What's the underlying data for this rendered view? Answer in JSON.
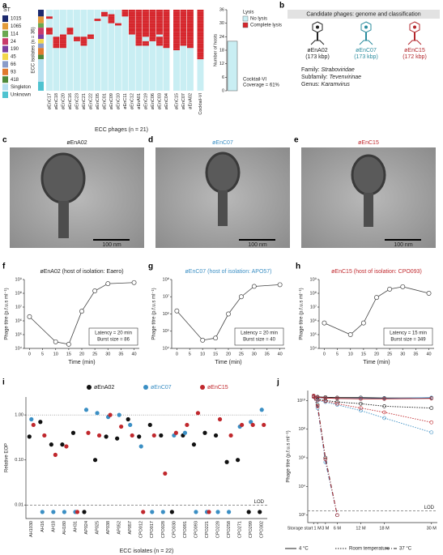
{
  "panel_labels": [
    "a",
    "b",
    "c",
    "d",
    "e",
    "f",
    "g",
    "h",
    "i",
    "j"
  ],
  "panel_b": {
    "header": "Candidate phages: genome and classification",
    "phages": [
      {
        "name": "øEnA02",
        "size": "(173 kbp)",
        "color": "#222222"
      },
      {
        "name": "øEnC07",
        "size": "(173 kbp)",
        "color": "#2b8c9e"
      },
      {
        "name": "øEnC15",
        "size": "(172 kbp)",
        "color": "#b3262b"
      }
    ],
    "classification": [
      {
        "rank": "Family:",
        "name": "Straboviridae"
      },
      {
        "rank": "Subfamily:",
        "name": "Tevenvirinae"
      },
      {
        "rank": "Genus:",
        "name": "Karamvirus"
      }
    ]
  },
  "micrographs": [
    {
      "title": "øEnA02",
      "color": "#222222",
      "scale": "100 nm"
    },
    {
      "title": "øEnC07",
      "color": "#3b8fc4",
      "scale": "100 nm"
    },
    {
      "title": "øEnC15",
      "color": "#c0282d",
      "scale": "100 nm"
    }
  ],
  "chart_data": [
    {
      "type": "heatmap",
      "ylabel": "ECC isolates (n = 36)",
      "xlabel": "ECC phages (n = 21)",
      "st_title": "ST",
      "st": [
        {
          "name": "1015",
          "color": "#1c2a6e",
          "count": 3
        },
        {
          "name": "1065",
          "color": "#e39b3a",
          "count": 3
        },
        {
          "name": "114",
          "color": "#6aa84f",
          "count": 2
        },
        {
          "name": "24",
          "color": "#c93b6b",
          "count": 3
        },
        {
          "name": "190",
          "color": "#7b3fa0",
          "count": 2
        },
        {
          "name": "45",
          "color": "#f2d64b",
          "count": 2
        },
        {
          "name": "66",
          "color": "#8a9cc9",
          "count": 2
        },
        {
          "name": "93",
          "color": "#e07a2f",
          "count": 3
        },
        {
          "name": "418",
          "color": "#4e8a3a",
          "count": 2
        },
        {
          "name": "Singleton",
          "color": "#b7e0f0",
          "count": 10
        },
        {
          "name": "Unknown",
          "color": "#4fc3d0",
          "count": 4
        }
      ],
      "columns": [
        "øEnC17",
        "øEnC18",
        "øEnC20",
        "øEnC16",
        "øEnC23",
        "øEnC21",
        "øEnC22",
        "øEnC05",
        "øEnC01",
        "øEnC09",
        "øEnC10",
        "øEnC11",
        "øEnC12",
        "øEnA01",
        "øEnC19",
        "øEnC06",
        "øEnC03",
        "øEnC04",
        "øEnC15",
        "øEnC07",
        "øEnA02",
        "Cocktail-VI"
      ],
      "lysed": [
        [
          3,
          8,
          9,
          10
        ],
        [
          12,
          13,
          14,
          15,
          16
        ],
        [
          11,
          12,
          13,
          14,
          15,
          16
        ],
        [
          8,
          9,
          10
        ],
        [
          12,
          13
        ],
        [
          12,
          13,
          14,
          15
        ],
        [
          11,
          12
        ],
        [
          4
        ],
        [
          1,
          2
        ],
        [
          2,
          3,
          4,
          5
        ],
        [
          6
        ],
        [
          0,
          1,
          2
        ],
        [
          0,
          1,
          2,
          3,
          4,
          5,
          6,
          7,
          8,
          9,
          10
        ],
        [
          0,
          1,
          2,
          3,
          4,
          5,
          6,
          7,
          8,
          9,
          10,
          11,
          12,
          13,
          14,
          15
        ],
        [
          0,
          1,
          2,
          3,
          4,
          5,
          6,
          7,
          8,
          9,
          10,
          11,
          14,
          15
        ],
        [
          0,
          1,
          2,
          3,
          4,
          5,
          6,
          7,
          8,
          9,
          10,
          11,
          12,
          13
        ],
        [
          0,
          1,
          2,
          3,
          4,
          5,
          6,
          7,
          8,
          9,
          10,
          12,
          13,
          14,
          15
        ],
        [
          0,
          1,
          2,
          3,
          4,
          5,
          6,
          7,
          8,
          9,
          10,
          11,
          12,
          13,
          14,
          15,
          16
        ],
        [
          0,
          1,
          2,
          3,
          4,
          5,
          6,
          7,
          8,
          9,
          10,
          11,
          12,
          13,
          14,
          15,
          16,
          17
        ],
        [
          0,
          1,
          2,
          3,
          4,
          5,
          6,
          7,
          8,
          9,
          10,
          11,
          12,
          13,
          14,
          15
        ],
        [
          0,
          1,
          2,
          3,
          4,
          5,
          6,
          7,
          8,
          9,
          10,
          11,
          12,
          13,
          14,
          15,
          16
        ],
        [
          0,
          1,
          2,
          3,
          4,
          5,
          6,
          7,
          8,
          9,
          10,
          11,
          12,
          13,
          14,
          15,
          16,
          17,
          18,
          19,
          20,
          21
        ]
      ],
      "no_lysis_color": "#c9eef3",
      "lysis_color": "#d7262c",
      "lysis_title": "Lysis",
      "lysis_legend": [
        "No lysis",
        "Complete lysis"
      ],
      "bar_label": "Number of hosts",
      "bar_value": 22,
      "bar_color": "#c9eef3",
      "bar_ylim": [
        0,
        36
      ],
      "bar_yticks": [
        0,
        6,
        12,
        18,
        24,
        30,
        36
      ],
      "cocktail_label": "Cocktail-VI",
      "coverage": "Coverage = 61%"
    },
    {
      "type": "line",
      "title": "øEnA02 (host of isolation: Eaero)",
      "title_color": "#222222",
      "color": "#444444",
      "log_y": true,
      "x": [
        0,
        10,
        15,
        20,
        25,
        30,
        40
      ],
      "values": [
        2000000,
        30000,
        20000,
        5000000,
        150000000,
        500000000,
        600000000
      ],
      "xlim": [
        -2,
        42
      ],
      "xticks": [
        0,
        5,
        10,
        15,
        20,
        25,
        30,
        35,
        40
      ],
      "ylim": [
        10000,
        1000000000
      ],
      "yticks": [
        {
          "value": 10000,
          "label": "10⁴"
        },
        {
          "value": 100000,
          "label": "10⁵"
        },
        {
          "value": 1000000,
          "label": "10⁶"
        },
        {
          "value": 10000000,
          "label": "10⁷"
        },
        {
          "value": 100000000,
          "label": "10⁸"
        },
        {
          "value": 1000000000,
          "label": "10⁹"
        }
      ],
      "xlabel": "Time (min)",
      "ylabel": "Phage titre (p.f.u.s ml⁻¹)",
      "annotation": [
        "Latency = 20 min",
        "Burst size = 86"
      ]
    },
    {
      "type": "line",
      "title": "øEnC07 (host of isolation: APO57)",
      "title_color": "#3b8fc4",
      "color": "#444444",
      "log_y": true,
      "x": [
        0,
        10,
        15,
        20,
        25,
        30,
        40
      ],
      "values": [
        1500000,
        30000,
        40000,
        1000000,
        10000000,
        40000000,
        50000000
      ],
      "xlim": [
        -2,
        42
      ],
      "xticks": [
        0,
        5,
        10,
        15,
        20,
        25,
        30,
        35,
        40
      ],
      "ylim": [
        10000,
        100000000
      ],
      "yticks": [
        {
          "value": 10000,
          "label": "10⁴"
        },
        {
          "value": 100000,
          "label": "10⁵"
        },
        {
          "value": 1000000,
          "label": "10⁶"
        },
        {
          "value": 10000000,
          "label": "10⁷"
        },
        {
          "value": 100000000,
          "label": "10⁸"
        }
      ],
      "xlabel": "Time (min)",
      "ylabel": "Phage titre (p.f.u.s ml⁻¹)",
      "annotation": [
        "Latency = 20 min",
        "Burst size = 40"
      ]
    },
    {
      "type": "line",
      "title": "øEnC15 (host of isolation: CPO093)",
      "title_color": "#c0282d",
      "color": "#444444",
      "log_y": true,
      "x": [
        0,
        10,
        15,
        20,
        25,
        30,
        40
      ],
      "values": [
        700000,
        100000,
        700000,
        50000000,
        200000000,
        300000000,
        100000000
      ],
      "xlim": [
        -2,
        42
      ],
      "xticks": [
        0,
        5,
        10,
        15,
        20,
        25,
        30,
        35,
        40
      ],
      "ylim": [
        10000,
        1000000000
      ],
      "yticks": [
        {
          "value": 10000,
          "label": "10⁴"
        },
        {
          "value": 100000,
          "label": "10⁵"
        },
        {
          "value": 1000000,
          "label": "10⁶"
        },
        {
          "value": 10000000,
          "label": "10⁷"
        },
        {
          "value": 100000000,
          "label": "10⁸"
        },
        {
          "value": 1000000000,
          "label": "10⁹"
        }
      ],
      "xlabel": "Time (min)",
      "ylabel": "Phage titre (p.f.u.s ml⁻¹)",
      "annotation": [
        "Latency = 15 min",
        "Burst size = 349"
      ]
    },
    {
      "type": "scatter",
      "categories": [
        "AH1030",
        "AH16",
        "AH18",
        "AH180",
        "AH31",
        "AP024",
        "AP025",
        "AP038",
        "AP052",
        "AP057",
        "CPO012",
        "CPO017",
        "CPO028",
        "CPO030",
        "CPO091",
        "CPO093",
        "CPO221",
        "CPO228",
        "CPO258",
        "CPO271",
        "CPO299",
        "CPO302"
      ],
      "series": [
        {
          "name": "øEnA02",
          "color": "#111111",
          "values": [
            0.33,
            0.7,
            0.22,
            0.22,
            0.4,
            0.007,
            0.1,
            0.33,
            0.3,
            0.8,
            0.33,
            0.6,
            0.35,
            0.007,
            0.35,
            0.22,
            0.4,
            0.35,
            0.09,
            0.1,
            0.007,
            0.007
          ]
        },
        {
          "name": "øEnC07",
          "color": "#3b8fc4",
          "values": [
            0.8,
            0.007,
            0.007,
            0.007,
            0.007,
            1.3,
            1.1,
            0.9,
            1.0,
            0.6,
            0.2,
            0.007,
            0.007,
            0.35,
            0.4,
            0.007,
            0.007,
            0.007,
            0.007,
            0.55,
            0.7,
            1.3
          ]
        },
        {
          "name": "øEnC15",
          "color": "#c0282d",
          "values": [
            0.6,
            0.35,
            0.13,
            0.2,
            0.007,
            0.4,
            0.35,
            1.0,
            0.55,
            0.35,
            0.007,
            0.35,
            0.05,
            0.4,
            0.6,
            1.1,
            0.007,
            0.8,
            0.35,
            0.6,
            0.6,
            0.6
          ]
        }
      ],
      "log_y": true,
      "ylim": [
        0.005,
        2.5
      ],
      "yticks": [
        {
          "value": 0.01,
          "label": "0.01"
        },
        {
          "value": 0.1,
          "label": "0.10"
        },
        {
          "value": 1,
          "label": "1.00"
        }
      ],
      "reference": 1,
      "lod": 0.01,
      "lod_label": "LOD",
      "ylabel": "Relative EOP",
      "xlabel": "ECC isolates (n = 22)"
    },
    {
      "type": "line",
      "log_y": true,
      "x": [
        0,
        1,
        3,
        6,
        12,
        18,
        30
      ],
      "xlim": [
        -1.5,
        31.5
      ],
      "xticks": [
        {
          "value": 0,
          "label": "Storage start"
        },
        {
          "value": 1,
          "label": "1 M"
        },
        {
          "value": 3,
          "label": "3 M"
        },
        {
          "value": 6,
          "label": "6 M"
        },
        {
          "value": 12,
          "label": "12 M"
        },
        {
          "value": 18,
          "label": "18 M"
        },
        {
          "value": 30,
          "label": "30 M"
        }
      ],
      "ylim": [
        30,
        50000000000
      ],
      "yticks": [
        {
          "value": 100,
          "label": "10²"
        },
        {
          "value": 10000,
          "label": "10⁴"
        },
        {
          "value": 1000000,
          "label": "10⁶"
        },
        {
          "value": 100000000,
          "label": "10⁸"
        },
        {
          "value": 10000000000,
          "label": "10¹⁰"
        }
      ],
      "lod": 200,
      "lod_label": "LOD",
      "ylabel": "Phage titre (p.f.u.s ml⁻¹)",
      "groups": [
        {
          "name": "4 °C",
          "dash": "none",
          "series": [
            {
              "color": "#111111",
              "values": [
                20000000000,
                18000000000,
                17000000000,
                16000000000,
                16000000000,
                15000000000,
                15000000000
              ]
            },
            {
              "color": "#3b8fc4",
              "values": [
                20000000000,
                16000000000,
                15000000000,
                14000000000,
                14000000000,
                14000000000,
                16000000000
              ]
            },
            {
              "color": "#c0282d",
              "values": [
                22000000000,
                17000000000,
                15000000000,
                14000000000,
                13000000000,
                13000000000,
                14000000000
              ]
            }
          ]
        },
        {
          "name": "Room temperature",
          "dash": "1.5,1.5",
          "series": [
            {
              "color": "#111111",
              "values": [
                20000000000,
                12000000000,
                10000000000,
                8000000000,
                6000000000,
                4000000000,
                3000000000
              ]
            },
            {
              "color": "#3b8fc4",
              "values": [
                20000000000,
                10000000000,
                8000000000,
                5000000000,
                2000000000,
                600000000,
                60000000
              ]
            },
            {
              "color": "#c0282d",
              "values": [
                20000000000,
                11000000000,
                9000000000,
                6000000000,
                3000000000,
                1500000000,
                300000000
              ]
            }
          ]
        },
        {
          "name": "37 °C",
          "dash": "5,2,1,2",
          "series": [
            {
              "color": "#111111",
              "values": [
                18000000000,
                5000000000,
                1000000,
                100,
                null,
                null,
                null
              ]
            },
            {
              "color": "#3b8fc4",
              "values": [
                18000000000,
                3000000000,
                500000,
                100,
                null,
                null,
                null
              ]
            },
            {
              "color": "#c0282d",
              "values": [
                18000000000,
                4000000000,
                800000,
                100,
                null,
                null,
                null
              ]
            }
          ]
        }
      ]
    }
  ]
}
